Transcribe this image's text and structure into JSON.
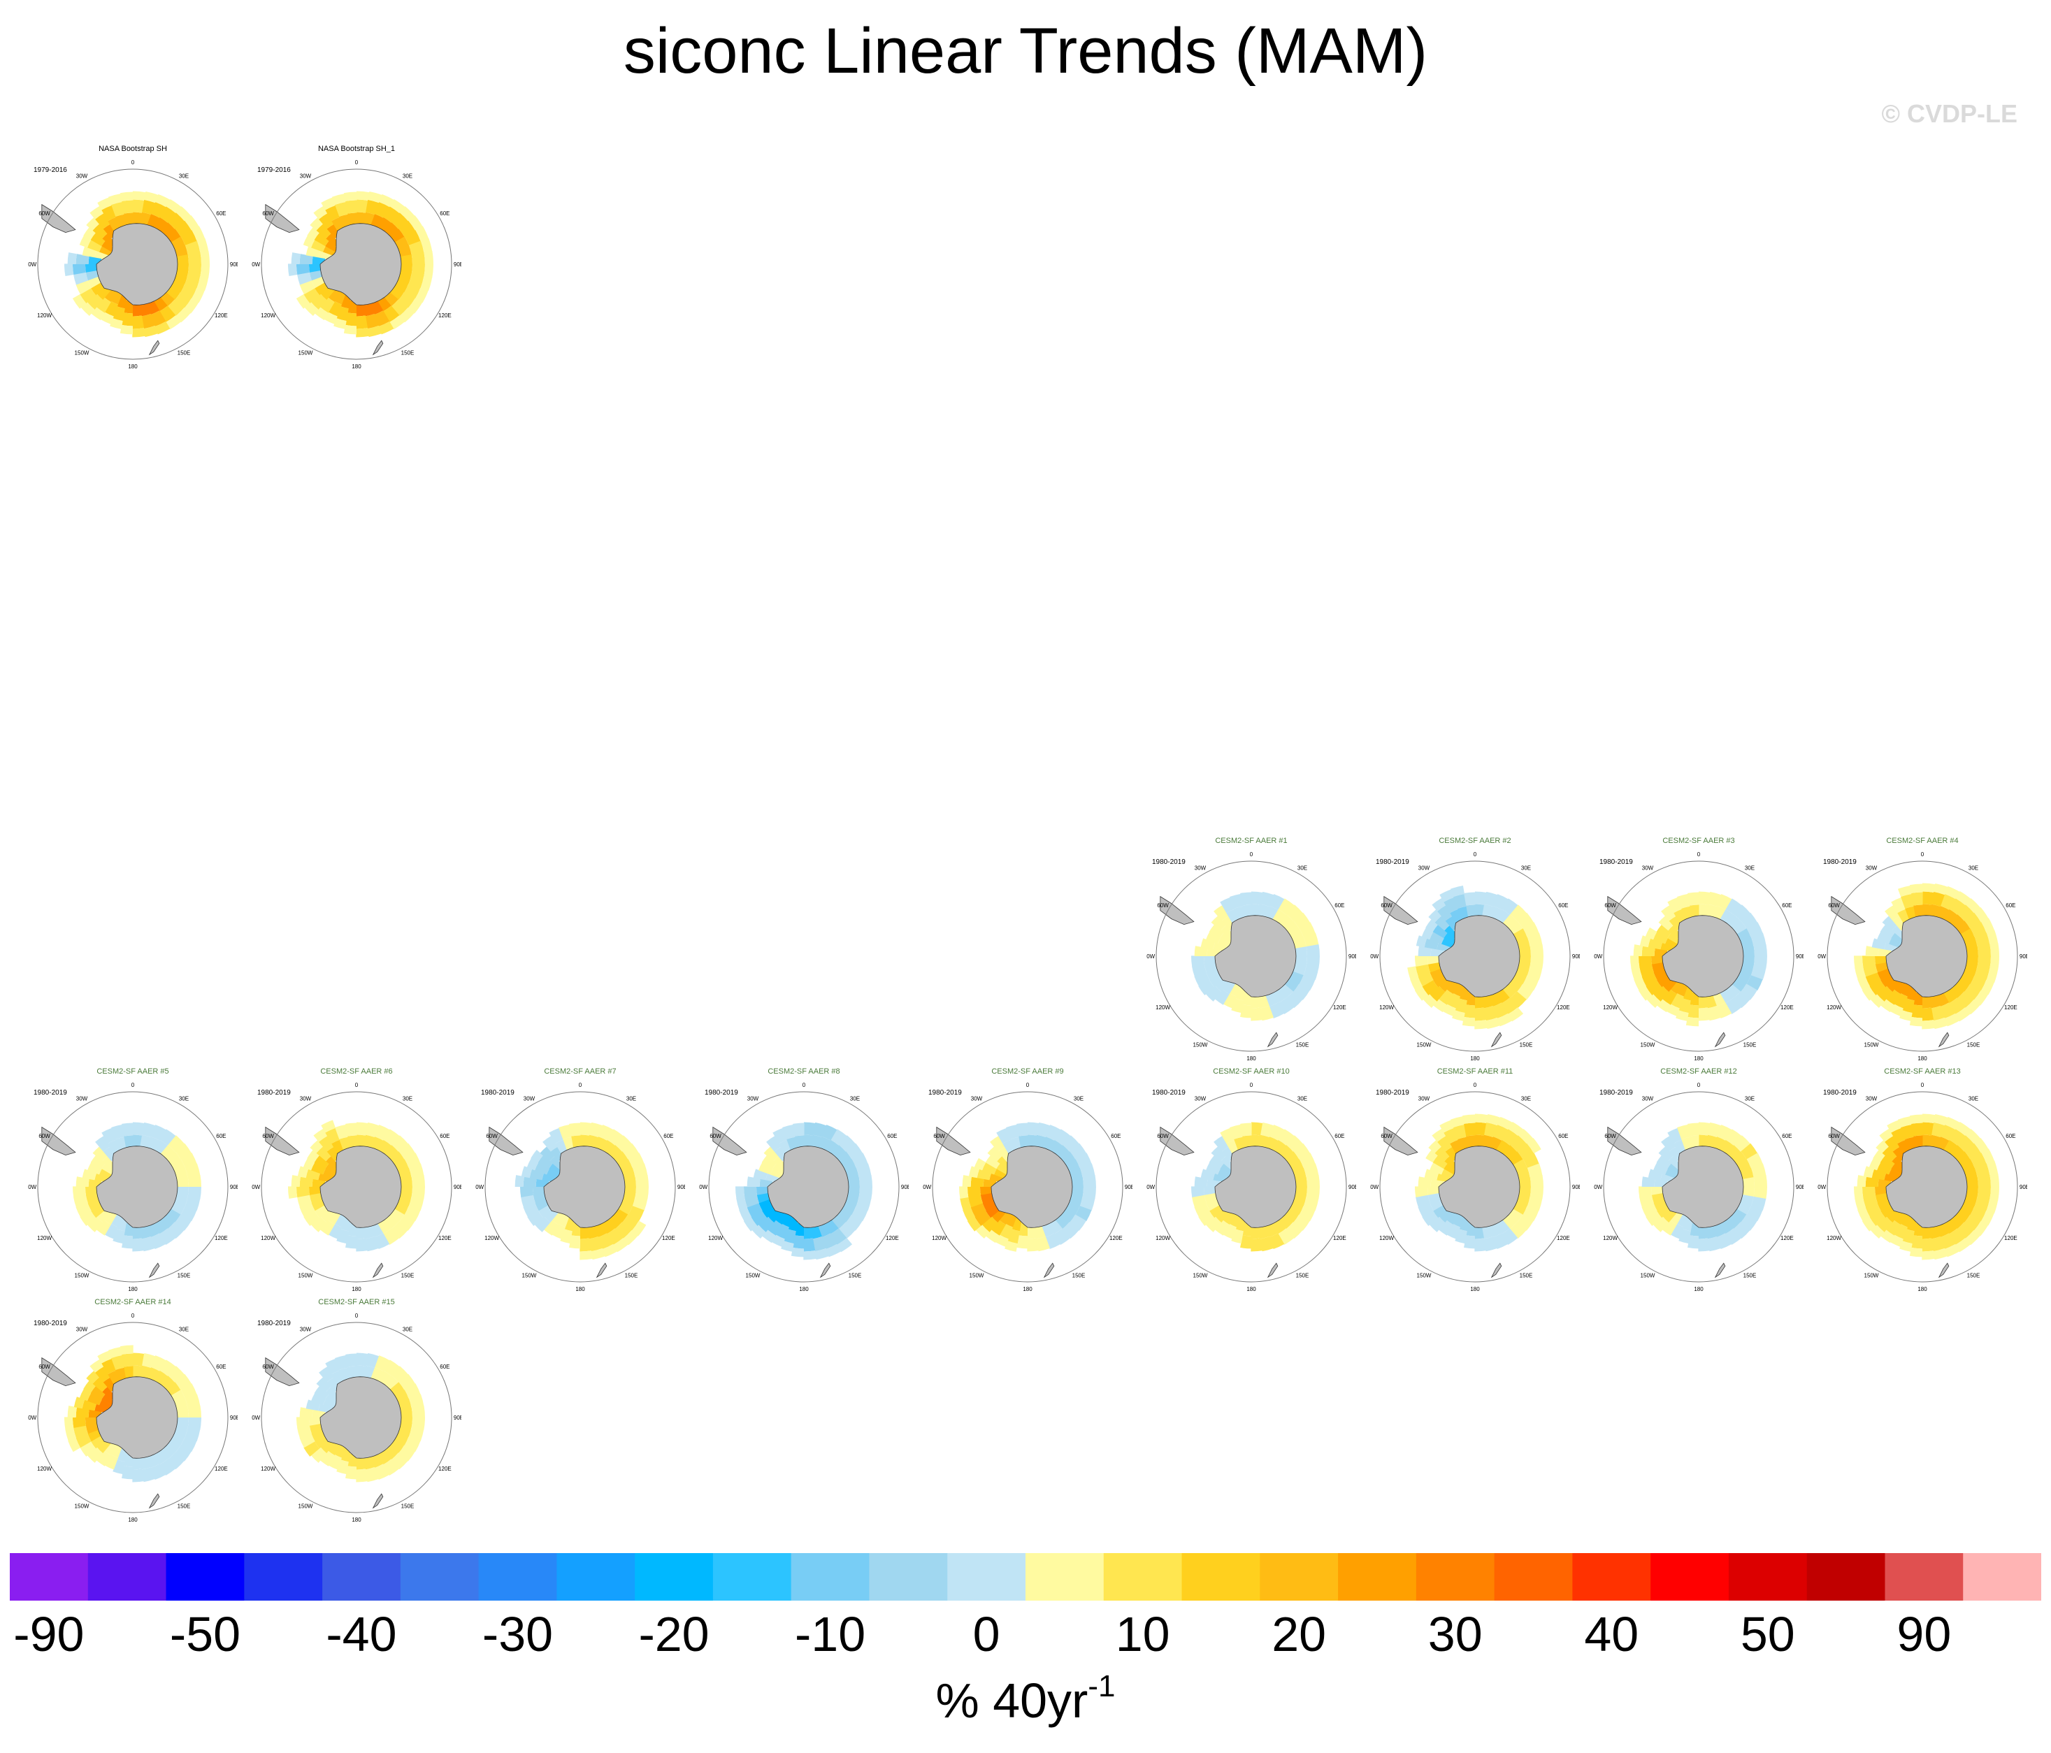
{
  "title": "siconc Linear Trends (MAM)",
  "copyright": "© CVDP-LE",
  "colors": {
    "land": "#bfbfbf",
    "panel_title_model": "#4a7a3a",
    "panel_title_obs": "#000000"
  },
  "lon_labels": [
    "0",
    "30E",
    "60E",
    "90E",
    "120E",
    "150E",
    "180",
    "150W",
    "120W",
    "90W",
    "60W",
    "30W"
  ],
  "panels": [
    {
      "title": "NASA Bootstrap SH",
      "period": "1979-2016",
      "kind": "obs",
      "row": 0,
      "col": 0
    },
    {
      "title": "NASA Bootstrap SH_1",
      "period": "1979-2016",
      "kind": "obs",
      "row": 0,
      "col": 1
    },
    {
      "title": "CESM2-SF AAER #1",
      "period": "1980-2019",
      "kind": "model",
      "row": 1,
      "col": 5
    },
    {
      "title": "CESM2-SF AAER #2",
      "period": "1980-2019",
      "kind": "model",
      "row": 1,
      "col": 6
    },
    {
      "title": "CESM2-SF AAER #3",
      "period": "1980-2019",
      "kind": "model",
      "row": 1,
      "col": 7
    },
    {
      "title": "CESM2-SF AAER #4",
      "period": "1980-2019",
      "kind": "model",
      "row": 1,
      "col": 8
    },
    {
      "title": "CESM2-SF AAER #5",
      "period": "1980-2019",
      "kind": "model",
      "row": 2,
      "col": 0
    },
    {
      "title": "CESM2-SF AAER #6",
      "period": "1980-2019",
      "kind": "model",
      "row": 2,
      "col": 1
    },
    {
      "title": "CESM2-SF AAER #7",
      "period": "1980-2019",
      "kind": "model",
      "row": 2,
      "col": 2
    },
    {
      "title": "CESM2-SF AAER #8",
      "period": "1980-2019",
      "kind": "model",
      "row": 2,
      "col": 3
    },
    {
      "title": "CESM2-SF AAER #9",
      "period": "1980-2019",
      "kind": "model",
      "row": 2,
      "col": 4
    },
    {
      "title": "CESM2-SF AAER #10",
      "period": "1980-2019",
      "kind": "model",
      "row": 2,
      "col": 5
    },
    {
      "title": "CESM2-SF AAER #11",
      "period": "1980-2019",
      "kind": "model",
      "row": 2,
      "col": 6
    },
    {
      "title": "CESM2-SF AAER #12",
      "period": "1980-2019",
      "kind": "model",
      "row": 2,
      "col": 7
    },
    {
      "title": "CESM2-SF AAER #13",
      "period": "1980-2019",
      "kind": "model",
      "row": 2,
      "col": 8
    },
    {
      "title": "CESM2-SF AAER #14",
      "period": "1980-2019",
      "kind": "model",
      "row": 3,
      "col": 0
    },
    {
      "title": "CESM2-SF AAER #15",
      "period": "1980-2019",
      "kind": "model",
      "row": 3,
      "col": 1
    }
  ],
  "colorbar": {
    "colors": [
      "#8a1ef0",
      "#5a14f0",
      "#0000ff",
      "#1e32f0",
      "#3c5ae6",
      "#3c78ec",
      "#2888f8",
      "#14a0ff",
      "#00b8ff",
      "#2cc4ff",
      "#78cdf5",
      "#a0d7f0",
      "#c0e4f5",
      "#fffaa0",
      "#ffe650",
      "#ffd01e",
      "#ffbc14",
      "#ffa000",
      "#ff8200",
      "#ff6400",
      "#ff3200",
      "#ff0000",
      "#dc0000",
      "#c00000",
      "#e05050",
      "#ffb4b4"
    ],
    "tick_labels": [
      "-90",
      "-50",
      "-40",
      "-30",
      "-20",
      "-10",
      "0",
      "10",
      "20",
      "30",
      "40",
      "50",
      "90"
    ],
    "unit": "% 40yr",
    "unit_exponent": "-1"
  },
  "chart_data": {
    "type": "heatmap",
    "title": "siconc Linear Trends (MAM)",
    "variable": "siconc",
    "season": "MAM",
    "units": "% 40yr-1",
    "colorbar_levels": [
      -90,
      -50,
      -40,
      -30,
      -20,
      -10,
      0,
      10,
      20,
      30,
      40,
      50,
      90
    ],
    "maps": [
      {
        "title": "NASA Bootstrap SH",
        "period": "1979-2016",
        "trend_pattern": [
          [
            0,
            15
          ],
          [
            40,
            25
          ],
          [
            80,
            15
          ],
          [
            120,
            10
          ],
          [
            160,
            30
          ],
          [
            200,
            20
          ],
          [
            240,
            10
          ],
          [
            270,
            -25
          ],
          [
            300,
            25
          ],
          [
            330,
            20
          ]
        ]
      },
      {
        "title": "NASA Bootstrap SH_1",
        "period": "1979-2016",
        "trend_pattern": [
          [
            0,
            15
          ],
          [
            40,
            25
          ],
          [
            80,
            15
          ],
          [
            120,
            10
          ],
          [
            160,
            30
          ],
          [
            200,
            20
          ],
          [
            240,
            10
          ],
          [
            270,
            -25
          ],
          [
            300,
            25
          ],
          [
            330,
            20
          ]
        ]
      },
      {
        "title": "CESM2-SF AAER #1",
        "period": "1980-2019",
        "trend_pattern": [
          [
            0,
            -5
          ],
          [
            60,
            5
          ],
          [
            120,
            -8
          ],
          [
            180,
            5
          ],
          [
            240,
            -5
          ],
          [
            300,
            5
          ]
        ]
      },
      {
        "title": "CESM2-SF AAER #2",
        "period": "1980-2019",
        "trend_pattern": [
          [
            0,
            -8
          ],
          [
            60,
            5
          ],
          [
            120,
            8
          ],
          [
            180,
            15
          ],
          [
            240,
            20
          ],
          [
            300,
            -20
          ]
        ]
      },
      {
        "title": "CESM2-SF AAER #3",
        "period": "1980-2019",
        "trend_pattern": [
          [
            0,
            5
          ],
          [
            60,
            -5
          ],
          [
            120,
            -10
          ],
          [
            180,
            10
          ],
          [
            240,
            25
          ],
          [
            300,
            10
          ]
        ]
      },
      {
        "title": "CESM2-SF AAER #4",
        "period": "1980-2019",
        "trend_pattern": [
          [
            0,
            20
          ],
          [
            60,
            15
          ],
          [
            120,
            10
          ],
          [
            180,
            20
          ],
          [
            240,
            25
          ],
          [
            300,
            -10
          ]
        ]
      },
      {
        "title": "CESM2-SF AAER #5",
        "period": "1980-2019",
        "trend_pattern": [
          [
            0,
            -8
          ],
          [
            60,
            5
          ],
          [
            120,
            -5
          ],
          [
            180,
            -8
          ],
          [
            240,
            8
          ],
          [
            300,
            5
          ]
        ]
      },
      {
        "title": "CESM2-SF AAER #6",
        "period": "1980-2019",
        "trend_pattern": [
          [
            0,
            5
          ],
          [
            60,
            8
          ],
          [
            120,
            5
          ],
          [
            180,
            -5
          ],
          [
            240,
            5
          ],
          [
            300,
            20
          ]
        ]
      },
      {
        "title": "CESM2-SF AAER #7",
        "period": "1980-2019",
        "trend_pattern": [
          [
            0,
            8
          ],
          [
            60,
            5
          ],
          [
            120,
            10
          ],
          [
            180,
            10
          ],
          [
            240,
            -5
          ],
          [
            300,
            -15
          ]
        ]
      },
      {
        "title": "CESM2-SF AAER #8",
        "period": "1980-2019",
        "trend_pattern": [
          [
            0,
            -10
          ],
          [
            60,
            -8
          ],
          [
            120,
            -5
          ],
          [
            180,
            -20
          ],
          [
            240,
            -25
          ],
          [
            300,
            5
          ]
        ]
      },
      {
        "title": "CESM2-SF AAER #9",
        "period": "1980-2019",
        "trend_pattern": [
          [
            0,
            -8
          ],
          [
            60,
            -5
          ],
          [
            120,
            -10
          ],
          [
            180,
            5
          ],
          [
            240,
            30
          ],
          [
            300,
            10
          ]
        ]
      },
      {
        "title": "CESM2-SF AAER #10",
        "period": "1980-2019",
        "trend_pattern": [
          [
            0,
            10
          ],
          [
            60,
            5
          ],
          [
            120,
            8
          ],
          [
            180,
            10
          ],
          [
            240,
            5
          ],
          [
            300,
            -10
          ]
        ]
      },
      {
        "title": "CESM2-SF AAER #11",
        "period": "1980-2019",
        "trend_pattern": [
          [
            0,
            20
          ],
          [
            60,
            10
          ],
          [
            120,
            5
          ],
          [
            180,
            -8
          ],
          [
            240,
            -5
          ],
          [
            300,
            10
          ]
        ]
      },
      {
        "title": "CESM2-SF AAER #12",
        "period": "1980-2019",
        "trend_pattern": [
          [
            0,
            5
          ],
          [
            60,
            10
          ],
          [
            120,
            -5
          ],
          [
            180,
            -8
          ],
          [
            240,
            10
          ],
          [
            300,
            -8
          ]
        ]
      },
      {
        "title": "CESM2-SF AAER #13",
        "period": "1980-2019",
        "trend_pattern": [
          [
            0,
            20
          ],
          [
            60,
            10
          ],
          [
            120,
            10
          ],
          [
            180,
            15
          ],
          [
            240,
            10
          ],
          [
            300,
            25
          ]
        ]
      },
      {
        "title": "CESM2-SF AAER #14",
        "period": "1980-2019",
        "trend_pattern": [
          [
            0,
            10
          ],
          [
            60,
            5
          ],
          [
            120,
            -5
          ],
          [
            180,
            -5
          ],
          [
            240,
            10
          ],
          [
            300,
            30
          ]
        ]
      },
      {
        "title": "CESM2-SF AAER #15",
        "period": "1980-2019",
        "trend_pattern": [
          [
            0,
            -5
          ],
          [
            60,
            8
          ],
          [
            120,
            5
          ],
          [
            180,
            5
          ],
          [
            240,
            10
          ],
          [
            300,
            -5
          ]
        ]
      }
    ]
  }
}
